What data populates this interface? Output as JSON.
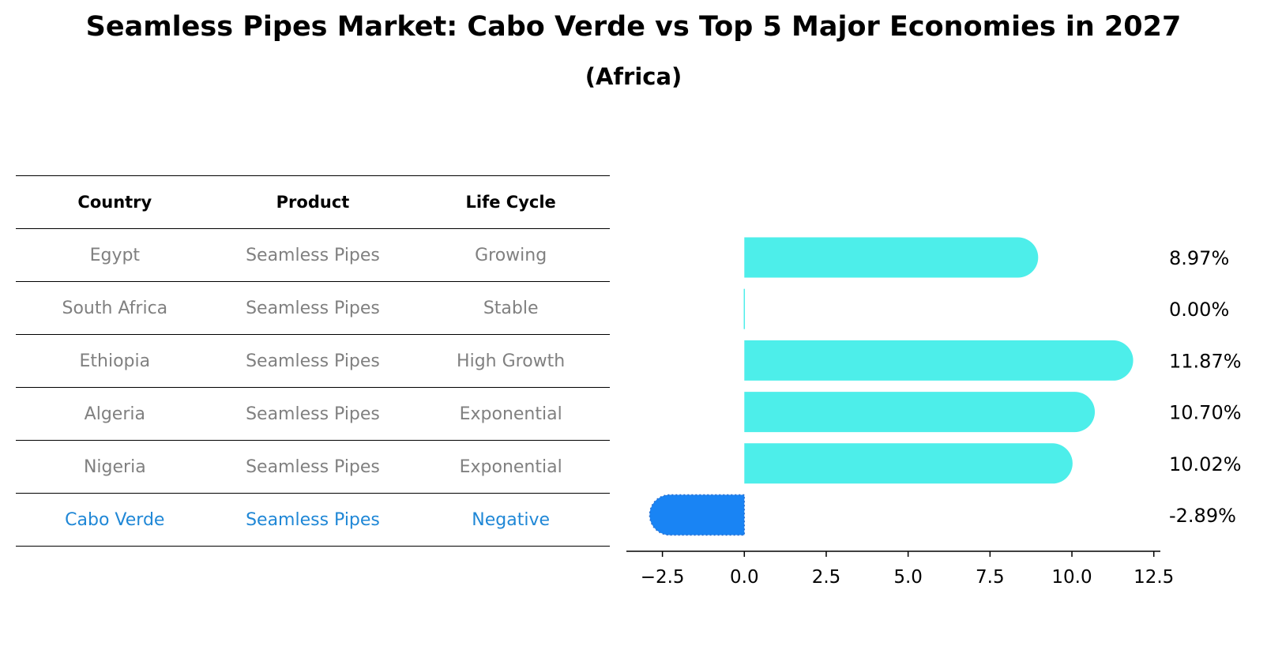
{
  "title": "Seamless Pipes Market: Cabo Verde vs Top 5 Major Economies in 2027",
  "subtitle": "(Africa)",
  "table": {
    "headers": [
      "Country",
      "Product",
      "Life Cycle"
    ],
    "rows": [
      {
        "country": "Egypt",
        "product": "Seamless Pipes",
        "life_cycle": "Growing"
      },
      {
        "country": "South Africa",
        "product": "Seamless Pipes",
        "life_cycle": "Stable"
      },
      {
        "country": "Ethiopia",
        "product": "Seamless Pipes",
        "life_cycle": "High Growth"
      },
      {
        "country": "Algeria",
        "product": "Seamless Pipes",
        "life_cycle": "Exponential"
      },
      {
        "country": "Nigeria",
        "product": "Seamless Pipes",
        "life_cycle": "Exponential"
      },
      {
        "country": "Cabo Verde",
        "product": "Seamless Pipes",
        "life_cycle": "Negative"
      }
    ]
  },
  "chart_data": {
    "type": "bar",
    "orientation": "horizontal",
    "categories": [
      "Egypt",
      "South Africa",
      "Ethiopia",
      "Algeria",
      "Nigeria",
      "Cabo Verde"
    ],
    "values": [
      8.97,
      0.0,
      11.87,
      10.7,
      10.02,
      -2.89
    ],
    "data_labels": [
      "8.97%",
      "0.00%",
      "11.87%",
      "10.70%",
      "10.02%",
      "-2.89%"
    ],
    "highlight": "Cabo Verde",
    "xlim": [
      -3.6,
      12.7
    ],
    "xticks": [
      -2.5,
      0.0,
      2.5,
      5.0,
      7.5,
      10.0,
      12.5
    ],
    "xtick_labels": [
      "−2.5",
      "0.0",
      "2.5",
      "5.0",
      "7.5",
      "10.0",
      "12.5"
    ],
    "colors": {
      "default": "#4deeea",
      "highlight": "#1984f4"
    }
  }
}
